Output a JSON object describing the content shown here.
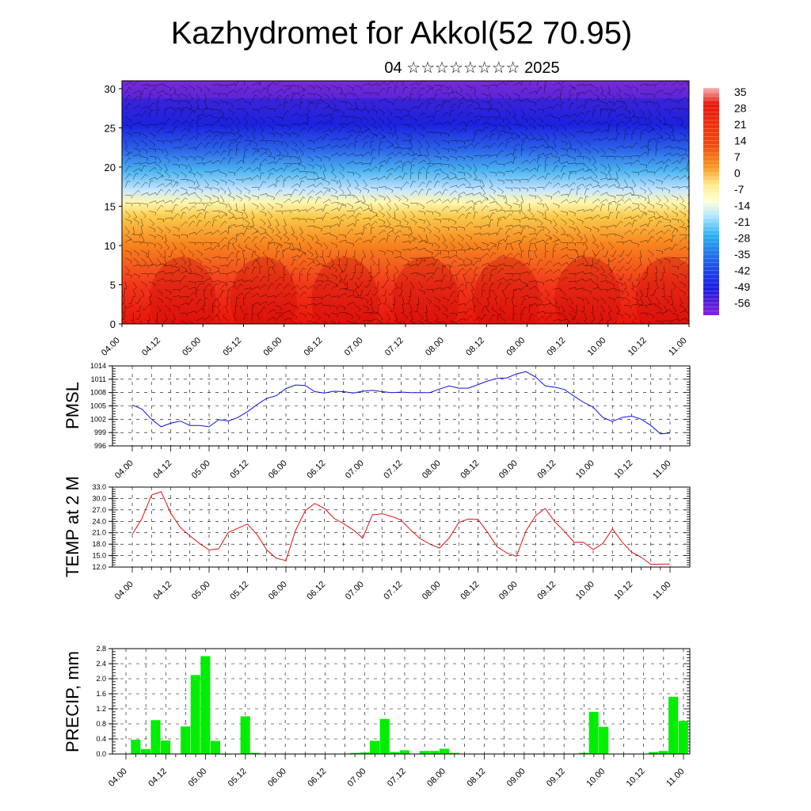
{
  "title": "Kazhydromet for Akkol(52 70.95)",
  "subtitle": "04 ☆☆☆☆☆☆☆☆ 2025",
  "time_ticks": [
    "04.00",
    "04.12",
    "05.00",
    "05.12",
    "06.00",
    "06.12",
    "07.00",
    "07.12",
    "08.00",
    "08.12",
    "09.00",
    "09.12",
    "10.00",
    "10.12",
    "11.00"
  ],
  "chart_data": [
    {
      "type": "heatmap",
      "y_ticks": [
        "0",
        "5",
        "10",
        "15",
        "20",
        "25",
        "30"
      ],
      "ylim": [
        0,
        31
      ],
      "colorbar_labels": [
        "35",
        "28",
        "21",
        "14",
        "7",
        "0",
        "-7",
        "-14",
        "-21",
        "-28",
        "-35",
        "-42",
        "-49",
        "-56"
      ],
      "colors": {
        "warm": "#e8160c",
        "mid": "#fff59a",
        "cold": "#1a1ee0",
        "top": "#8a1fd6"
      }
    },
    {
      "type": "line",
      "ylabel": "PMSL",
      "y_ticks": [
        "1014",
        "1011",
        "1008",
        "1005",
        "1002",
        "999",
        "996"
      ],
      "ylim": [
        996,
        1014
      ],
      "color": "#1010e0",
      "x": [
        0,
        3,
        6,
        9,
        12,
        15,
        18,
        21,
        24,
        27,
        30,
        33,
        36,
        39,
        42,
        45,
        48,
        51,
        54,
        57,
        60,
        63,
        66,
        69,
        72,
        75,
        78,
        81,
        84,
        87,
        90,
        93,
        96,
        99,
        102,
        105,
        108,
        111,
        114,
        117,
        120,
        123,
        126,
        129,
        132,
        135,
        138,
        141,
        144,
        147,
        150,
        153,
        156,
        159,
        162,
        165,
        168
      ],
      "values": [
        1005.2,
        1004.3,
        1002.0,
        1000.3,
        1001.1,
        1001.6,
        1000.6,
        1000.6,
        1000.3,
        1001.9,
        1001.6,
        1002.4,
        1003.7,
        1005.3,
        1006.7,
        1007.3,
        1008.9,
        1009.7,
        1009.6,
        1008.2,
        1007.9,
        1008.3,
        1008.2,
        1007.9,
        1008.3,
        1008.5,
        1008.2,
        1008.0,
        1008.1,
        1008.0,
        1008.0,
        1008.0,
        1008.8,
        1009.5,
        1009.0,
        1009.0,
        1009.8,
        1010.6,
        1011.2,
        1011.3,
        1012.2,
        1012.7,
        1011.5,
        1009.5,
        1009.2,
        1008.7,
        1007.2,
        1005.8,
        1004.7,
        1002.4,
        1001.5,
        1002.4,
        1002.7,
        1002.0,
        1000.6,
        998.7,
        998.9
      ]
    },
    {
      "type": "line",
      "ylabel": "TEMP at 2 M",
      "y_ticks": [
        "33.0",
        "30.0",
        "27.0",
        "24.0",
        "21.0",
        "18.0",
        "15.0",
        "12.0"
      ],
      "ylim": [
        12,
        33
      ],
      "color": "#e01010",
      "x": [
        0,
        3,
        6,
        9,
        12,
        15,
        18,
        21,
        24,
        27,
        30,
        33,
        36,
        39,
        42,
        45,
        48,
        51,
        54,
        57,
        60,
        63,
        66,
        69,
        72,
        75,
        78,
        81,
        84,
        87,
        90,
        93,
        96,
        99,
        102,
        105,
        108,
        111,
        114,
        117,
        120,
        123,
        126,
        129,
        132,
        135,
        138,
        141,
        144,
        147,
        150,
        153,
        156,
        159,
        162,
        165,
        168
      ],
      "values": [
        20.6,
        24.7,
        30.9,
        31.8,
        26.2,
        22.4,
        20.2,
        18.2,
        16.5,
        16.8,
        21.1,
        22.2,
        23.3,
        20.5,
        16.5,
        14.3,
        13.7,
        21.6,
        26.8,
        28.7,
        27.4,
        24.8,
        23.4,
        21.8,
        19.6,
        25.7,
        26.0,
        25.3,
        24.3,
        21.7,
        19.4,
        18.0,
        17.0,
        19.6,
        23.7,
        24.6,
        24.5,
        21.1,
        17.3,
        15.7,
        14.8,
        21.5,
        25.5,
        27.4,
        23.9,
        21.4,
        18.5,
        18.5,
        16.6,
        18.2,
        22.0,
        18.6,
        15.9,
        14.6,
        12.7,
        12.8,
        12.8
      ]
    },
    {
      "type": "bar",
      "ylabel": "PRECIP, mm",
      "y_ticks": [
        "2.8",
        "2.4",
        "2.0",
        "1.6",
        "1.2",
        "0.8",
        "0.4",
        "0.0"
      ],
      "ylim": [
        0,
        2.8
      ],
      "color": "#00ee00",
      "x": [
        3,
        6,
        9,
        12,
        18,
        21,
        24,
        27,
        30,
        36,
        39,
        69,
        72,
        75,
        78,
        81,
        84,
        90,
        93,
        96,
        99,
        138,
        141,
        144,
        159,
        162,
        165,
        168
      ],
      "values": [
        0.38,
        0.13,
        0.9,
        0.36,
        0.73,
        2.1,
        2.6,
        0.35,
        0.0,
        1.0,
        0.03,
        0.03,
        0.04,
        0.35,
        0.93,
        0.05,
        0.1,
        0.08,
        0.08,
        0.14,
        0.03,
        0.03,
        1.12,
        0.72,
        0.05,
        0.08,
        1.52,
        0.88
      ]
    }
  ]
}
